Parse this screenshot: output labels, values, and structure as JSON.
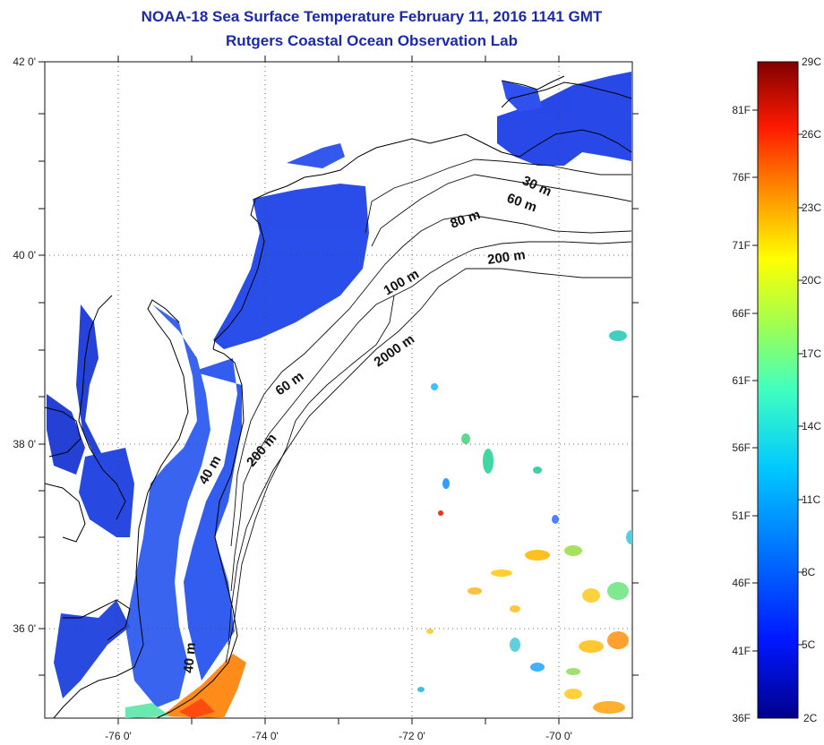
{
  "title": {
    "line1": "NOAA-18 Sea Surface Temperature February 11, 2016 1141 GMT",
    "line2": "Rutgers Coastal Ocean Observation Lab"
  },
  "axes": {
    "lat_labels": [
      "42 0'",
      "40 0'",
      "38 0'",
      "36 0'"
    ],
    "lon_labels": [
      "-76 0'",
      "-74 0'",
      "-72 0'",
      "-70 0'"
    ]
  },
  "contours": {
    "labels": [
      "30 m",
      "60 m",
      "80 m",
      "200 m",
      "100 m",
      "2000 m",
      "60 m",
      "200 m",
      "40 m",
      "40 m"
    ]
  },
  "colorbar": {
    "celsius": [
      "29C",
      "26C",
      "23C",
      "20C",
      "17C",
      "14C",
      "11C",
      "8C",
      "5C",
      "2C"
    ],
    "fahrenheit": [
      "81F",
      "76F",
      "71F",
      "66F",
      "61F",
      "56F",
      "51F",
      "46F",
      "41F",
      "36F"
    ],
    "colors": [
      "#7f0000",
      "#c40000",
      "#ff2a00",
      "#ff8a00",
      "#ffd800",
      "#c8ff30",
      "#5cffa0",
      "#00d8ff",
      "#0080ff",
      "#0028ff",
      "#000090"
    ]
  }
}
